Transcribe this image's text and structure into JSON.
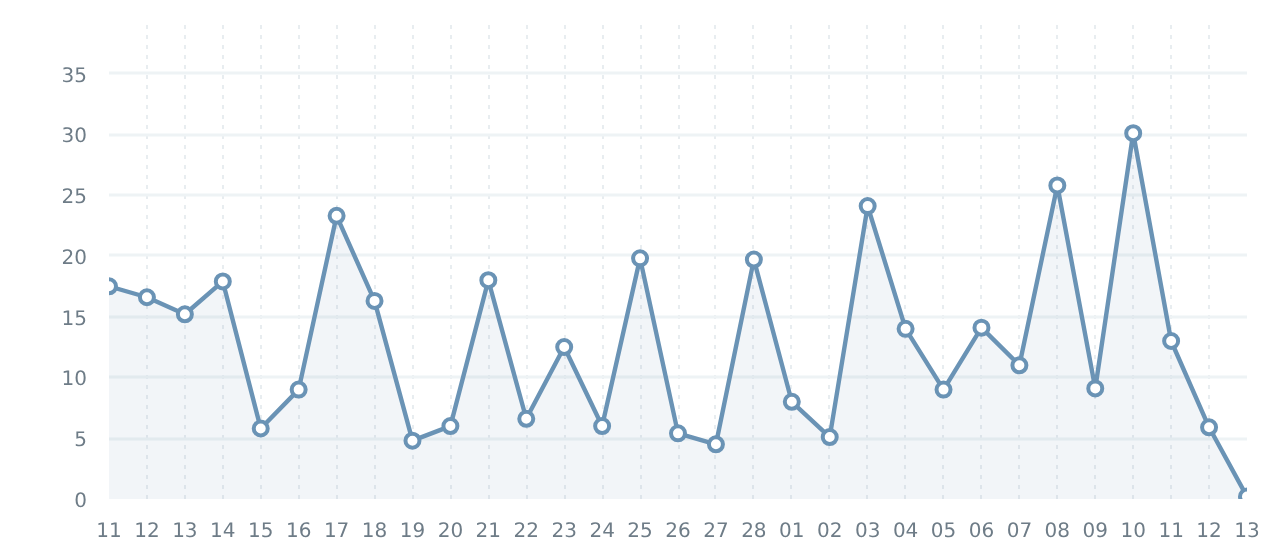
{
  "chart_data": {
    "type": "area",
    "categories": [
      "11",
      "12",
      "13",
      "14",
      "15",
      "16",
      "17",
      "18",
      "19",
      "20",
      "21",
      "22",
      "23",
      "24",
      "25",
      "26",
      "27",
      "28",
      "01",
      "02",
      "03",
      "04",
      "05",
      "06",
      "07",
      "08",
      "09",
      "10",
      "11",
      "12",
      "13"
    ],
    "series": [
      {
        "color": "#6a93b5",
        "values": [
          17.5,
          16.6,
          15.2,
          17.9,
          5.8,
          9,
          23.3,
          16.3,
          4.8,
          6,
          18,
          6.6,
          12.5,
          6,
          19.8,
          5.4,
          4.5,
          19.7,
          8,
          5.1,
          24.1,
          14,
          9,
          14.1,
          11,
          25.8,
          9.1,
          30.1,
          13,
          5.9,
          0.2
        ]
      }
    ],
    "ylim": [
      0,
      39
    ],
    "yticks": [
      0,
      5,
      10,
      15,
      20,
      25,
      30,
      35
    ],
    "grid": true,
    "marker": "circle",
    "line_style": "solid"
  }
}
